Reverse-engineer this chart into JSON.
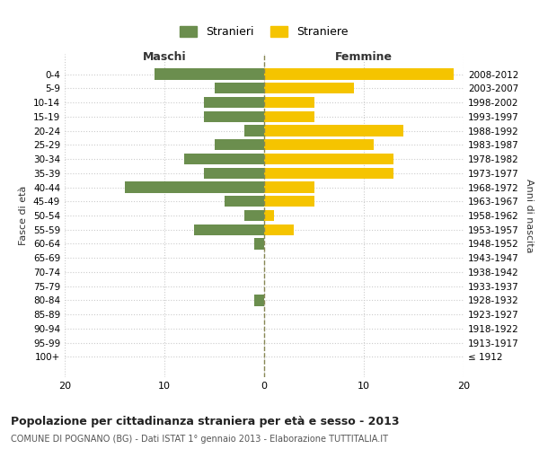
{
  "age_groups": [
    "0-4",
    "5-9",
    "10-14",
    "15-19",
    "20-24",
    "25-29",
    "30-34",
    "35-39",
    "40-44",
    "45-49",
    "50-54",
    "55-59",
    "60-64",
    "65-69",
    "70-74",
    "75-79",
    "80-84",
    "85-89",
    "90-94",
    "95-99",
    "100+"
  ],
  "birth_years": [
    "2008-2012",
    "2003-2007",
    "1998-2002",
    "1993-1997",
    "1988-1992",
    "1983-1987",
    "1978-1982",
    "1973-1977",
    "1968-1972",
    "1963-1967",
    "1958-1962",
    "1953-1957",
    "1948-1952",
    "1943-1947",
    "1938-1942",
    "1933-1937",
    "1928-1932",
    "1923-1927",
    "1918-1922",
    "1913-1917",
    "≤ 1912"
  ],
  "maschi": [
    11,
    5,
    6,
    6,
    2,
    5,
    8,
    6,
    14,
    4,
    2,
    7,
    1,
    0,
    0,
    0,
    1,
    0,
    0,
    0,
    0
  ],
  "femmine": [
    19,
    9,
    5,
    5,
    14,
    11,
    13,
    13,
    5,
    5,
    1,
    3,
    0,
    0,
    0,
    0,
    0,
    0,
    0,
    0,
    0
  ],
  "maschi_color": "#6b8e4e",
  "femmine_color": "#f5c400",
  "title": "Popolazione per cittadinanza straniera per età e sesso - 2013",
  "subtitle": "COMUNE DI POGNANO (BG) - Dati ISTAT 1° gennaio 2013 - Elaborazione TUTTITALIA.IT",
  "xlabel_left": "Maschi",
  "xlabel_right": "Femmine",
  "ylabel_left": "Fasce di età",
  "ylabel_right": "Anni di nascita",
  "legend_maschi": "Stranieri",
  "legend_femmine": "Straniere",
  "xlim": 20,
  "background_color": "#ffffff",
  "grid_color": "#cccccc"
}
